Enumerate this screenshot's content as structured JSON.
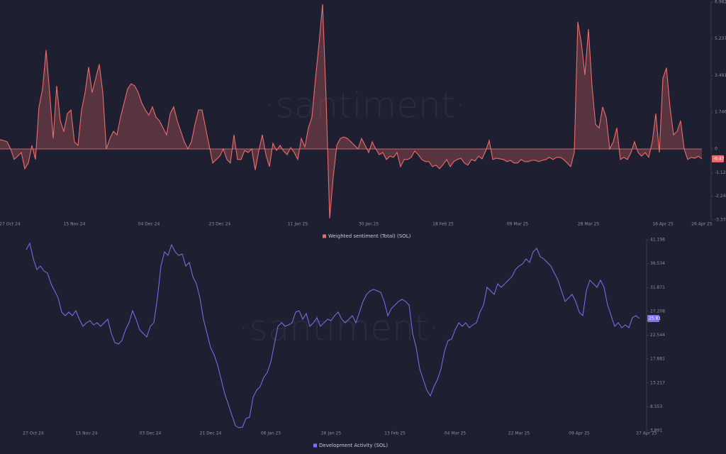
{
  "chart_data": [
    {
      "type": "area",
      "watermark": "·santiment·",
      "categories": [
        "27 Oct 24",
        null,
        null,
        null,
        null,
        null,
        null,
        null,
        null,
        null,
        null,
        null,
        null,
        null,
        null,
        null,
        null,
        null,
        null,
        null,
        null,
        "15 Nov 24",
        null,
        null,
        null,
        null,
        null,
        null,
        null,
        null,
        null,
        null,
        null,
        null,
        null,
        null,
        null,
        null,
        null,
        null,
        null,
        null,
        "04 Dec 24",
        null,
        null,
        null,
        null,
        null,
        null,
        null,
        null,
        null,
        null,
        null,
        null,
        null,
        null,
        null,
        null,
        null,
        null,
        null,
        "23 Dec 24",
        null,
        null,
        null,
        null,
        null,
        null,
        null,
        null,
        null,
        null,
        null,
        null,
        null,
        null,
        null,
        null,
        null,
        null,
        null,
        null,
        null,
        "11 Jan 25",
        null,
        null,
        null,
        null,
        null,
        null,
        null,
        null,
        null,
        null,
        null,
        null,
        null,
        null,
        null,
        null,
        null,
        null,
        null,
        "30 Jan 25",
        null,
        null,
        null,
        null,
        null,
        null,
        null,
        null,
        null,
        null,
        null,
        null,
        null,
        null,
        null,
        null,
        null,
        null,
        null,
        null,
        "18 Feb 25",
        null,
        null,
        null,
        null,
        null,
        null,
        null,
        null,
        null,
        null,
        null,
        null,
        null,
        null,
        null,
        null,
        null,
        null,
        null,
        null,
        "09 Mar 25",
        null,
        null,
        null,
        null,
        null,
        null,
        null,
        null,
        null,
        null,
        null,
        null,
        null,
        null,
        null,
        null,
        null,
        null,
        null,
        "28 Mar 25",
        null,
        null,
        null,
        null,
        null,
        null,
        null,
        null,
        null,
        null,
        null,
        null,
        null,
        null,
        null,
        null,
        null,
        null,
        null,
        null,
        "16 Apr 25",
        null,
        null,
        null,
        null,
        null,
        null,
        null,
        null,
        null,
        null,
        "26 Apr 25"
      ],
      "series": [
        {
          "name": "Weighted sentiment (Total) (SOL)",
          "color": "#ef6b6b",
          "values": [
            0.44,
            0.4,
            0.34,
            0,
            -0.5,
            -0.34,
            -0.17,
            -0.94,
            -0.67,
            0.17,
            -0.5,
            2.0,
            2.85,
            4.7,
            2.68,
            0.5,
            3.0,
            1.34,
            0.84,
            1.68,
            1.85,
            0.34,
            0.17,
            1.85,
            2.68,
            3.9,
            2.68,
            3.36,
            4.03,
            2.68,
            0,
            0.5,
            0.84,
            0.67,
            1.51,
            2.18,
            2.85,
            3.1,
            3.0,
            2.68,
            2.18,
            1.85,
            1.61,
            2.0,
            1.51,
            1.34,
            1.0,
            0.67,
            1.68,
            2.0,
            1.34,
            0.84,
            0.34,
            0,
            0.34,
            1.17,
            1.85,
            1.85,
            1.0,
            0.17,
            -0.67,
            -0.5,
            -0.34,
            0,
            -0.5,
            -0.67,
            0.67,
            -0.5,
            -0.5,
            -0.07,
            -0.17,
            0,
            -1.0,
            -0.1,
            0.67,
            -0.27,
            -0.84,
            0.27,
            -0.07,
            0.17,
            -0.1,
            -0.27,
            0.07,
            -0.17,
            -0.5,
            0.5,
            0.1,
            1.0,
            1.51,
            3.36,
            5.03,
            6.88,
            2.35,
            -3.3,
            -1.34,
            0.17,
            0.5,
            0.57,
            0.5,
            0.34,
            0.17,
            0,
            0.5,
            0.17,
            -0.17,
            0.34,
            0,
            -0.27,
            -0.17,
            -0.5,
            -0.34,
            -0.4,
            -0.17,
            -0.84,
            -0.5,
            -0.5,
            -0.4,
            -0.1,
            -0.27,
            -0.5,
            -0.6,
            -0.6,
            -0.84,
            -0.77,
            -0.94,
            -0.74,
            -0.5,
            -0.84,
            -0.6,
            -0.5,
            -0.44,
            -0.67,
            -0.77,
            -0.5,
            -0.57,
            -0.34,
            -0.47,
            -0.1,
            0.4,
            -0.5,
            -0.44,
            -0.47,
            -0.5,
            -0.6,
            -0.54,
            -0.67,
            -0.67,
            -0.5,
            -0.6,
            -0.6,
            -0.54,
            -0.54,
            -0.6,
            -0.54,
            -0.5,
            -0.4,
            -0.5,
            -0.4,
            -0.4,
            -0.5,
            -0.67,
            -0.84,
            -0.17,
            6.04,
            5.03,
            3.52,
            5.7,
            3.0,
            1.17,
            1.0,
            2.0,
            1.51,
            0,
            0.34,
            1.0,
            -0.5,
            -0.4,
            -0.5,
            -0.17,
            0.34,
            -0.17,
            -0.34,
            -0.17,
            -0.4,
            0.34,
            1.68,
            -0.17,
            3.36,
            3.86,
            2.0,
            0.67,
            0.84,
            1.34,
            0,
            -0.5,
            -0.4,
            -0.44,
            -0.34,
            -0.47
          ]
        }
      ],
      "ylim": [
        -3.374,
        6.982
      ],
      "yticks": [
        6.982,
        5.237,
        3.491,
        1.746,
        0,
        -1.125,
        -2.249,
        -3.374
      ]
    },
    {
      "type": "line",
      "watermark": "·santiment·",
      "categories": [
        null,
        null,
        "27 Oct 24",
        null,
        null,
        null,
        null,
        null,
        null,
        null,
        null,
        null,
        null,
        null,
        null,
        null,
        null,
        "15 Nov 24",
        null,
        null,
        null,
        null,
        null,
        null,
        null,
        null,
        null,
        null,
        null,
        null,
        null,
        null,
        null,
        null,
        null,
        "03 Dec 24",
        null,
        null,
        null,
        null,
        null,
        null,
        null,
        null,
        null,
        null,
        null,
        null,
        null,
        null,
        null,
        null,
        "21 Dec 24",
        null,
        null,
        null,
        null,
        null,
        null,
        null,
        null,
        null,
        null,
        null,
        null,
        null,
        null,
        null,
        null,
        "08 Jan 25",
        null,
        null,
        null,
        null,
        null,
        null,
        null,
        null,
        null,
        null,
        null,
        null,
        null,
        null,
        null,
        null,
        "26 Jan 25",
        null,
        null,
        null,
        null,
        null,
        null,
        null,
        null,
        null,
        null,
        null,
        null,
        null,
        null,
        null,
        null,
        null,
        "13 Feb 25",
        null,
        null,
        null,
        null,
        null,
        null,
        null,
        null,
        null,
        null,
        null,
        null,
        null,
        null,
        null,
        null,
        "04 Mar 25",
        null,
        null,
        null,
        null,
        null,
        null,
        null,
        null,
        null,
        null,
        null,
        null,
        null,
        null,
        null,
        null,
        null,
        "22 Mar 25",
        null,
        null,
        null,
        null,
        null,
        null,
        null,
        null,
        null,
        null,
        null,
        null,
        null,
        null,
        null,
        null,
        "09 Apr 25",
        null,
        null,
        null,
        null,
        null,
        null,
        null,
        null,
        null,
        null,
        null,
        null,
        null,
        null,
        null,
        null,
        null,
        null,
        "27 Apr 25"
      ],
      "series": [
        {
          "name": "Development Activity (SOL)",
          "color": "#8070f2",
          "values": [
            39.26,
            40.51,
            37.45,
            35.38,
            36.07,
            35.1,
            34.68,
            32.6,
            31.21,
            29.83,
            27.05,
            26.36,
            27.05,
            26.36,
            27.33,
            25.67,
            24.28,
            24.97,
            25.39,
            24.56,
            24.97,
            24.28,
            24.97,
            25.67,
            22.89,
            21.09,
            20.81,
            21.5,
            23.59,
            24.97,
            27.33,
            25.67,
            23.59,
            22.89,
            22.2,
            24.28,
            24.97,
            29.83,
            36.07,
            38.84,
            38.15,
            40.23,
            38.84,
            38.15,
            38.43,
            36.07,
            36.76,
            33.99,
            32.6,
            29.83,
            25.67,
            22.89,
            20.12,
            18.73,
            16.65,
            13.88,
            11.1,
            9.02,
            6.94,
            4.86,
            4.44,
            4.58,
            6.25,
            6.53,
            10.41,
            11.8,
            12.49,
            14.29,
            15.26,
            17.34,
            20.81,
            24.28,
            24.97,
            24.28,
            24.56,
            24.97,
            27.05,
            27.33,
            25.67,
            26.77,
            24.28,
            24.97,
            25.94,
            24.28,
            24.97,
            25.67,
            25.39,
            26.36,
            27.05,
            25.67,
            24.97,
            25.67,
            26.36,
            24.97,
            27.05,
            29.13,
            30.52,
            31.21,
            31.49,
            31.21,
            30.94,
            29.13,
            26.36,
            27.75,
            28.44,
            29.13,
            29.55,
            29.13,
            28.44,
            22.89,
            20.12,
            15.96,
            13.88,
            11.8,
            10.69,
            12.49,
            13.88,
            15.96,
            19.42,
            21.5,
            21.78,
            23.59,
            24.97,
            24.28,
            24.97,
            24.0,
            24.56,
            24.97,
            27.05,
            28.44,
            31.91,
            31.21,
            30.52,
            32.6,
            31.91,
            32.6,
            33.29,
            33.99,
            35.38,
            36.07,
            36.48,
            37.45,
            36.76,
            38.84,
            39.53,
            37.87,
            37.45,
            36.76,
            36.07,
            34.68,
            33.29,
            31.21,
            29.13,
            29.83,
            30.52,
            29.13,
            27.05,
            26.36,
            31.21,
            33.29,
            32.6,
            31.91,
            33.29,
            31.91,
            28.44,
            26.36,
            24.28,
            24.97,
            24.0,
            24.56,
            24.0,
            25.94,
            26.36,
            25.81,
            null,
            null
          ]
        }
      ],
      "ylim": [
        3.891,
        41.198
      ],
      "yticks": [
        41.198,
        36.534,
        31.871,
        27.208,
        22.544,
        17.881,
        13.217,
        8.553,
        3.891
      ]
    }
  ]
}
